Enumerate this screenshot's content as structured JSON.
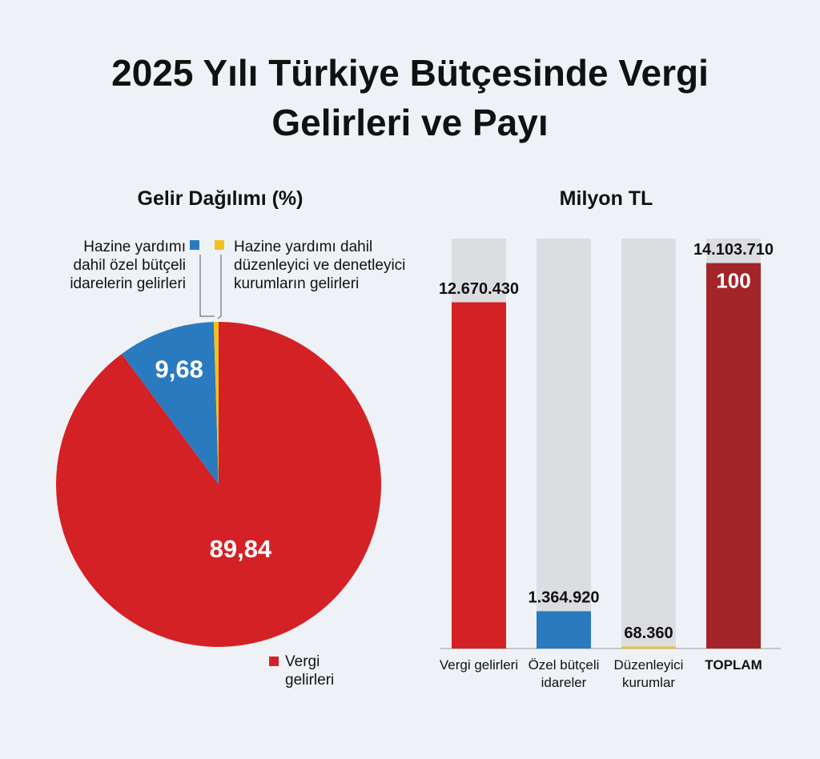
{
  "title": "2025 Yılı Türkiye Bütçesinde Vergi Gelirleri ve Payı",
  "chart_data": [
    {
      "type": "pie",
      "title": "Gelir Dağılımı (%)",
      "categories": [
        "Vergi gelirleri",
        "Hazine yardımı dahil özel bütçeli idarelerin gelirleri",
        "Hazine yardımı dahil düzenleyici ve denetleyici kurumların gelirleri"
      ],
      "values": [
        89.84,
        9.68,
        0.48
      ],
      "value_labels": [
        "89,84",
        "9,68",
        null
      ],
      "colors": [
        "#d42126",
        "#2a7ac0",
        "#f2c11b"
      ]
    },
    {
      "type": "bar",
      "title": "Milyon TL",
      "categories": [
        "Vergi gelirleri",
        "Özel bütçeli idareler",
        "Düzenleyici kurumlar",
        "TOPLAM"
      ],
      "values": [
        12670430,
        1364920,
        68360,
        14103710
      ],
      "value_labels": [
        "12.670.430",
        "1.364.920",
        "68.360",
        "14.103.710"
      ],
      "colors": [
        "#d42126",
        "#2a7ac0",
        "#f2c11b",
        "#a3252a"
      ],
      "ylim": [
        0,
        15000000
      ],
      "total_share": 100
    }
  ]
}
